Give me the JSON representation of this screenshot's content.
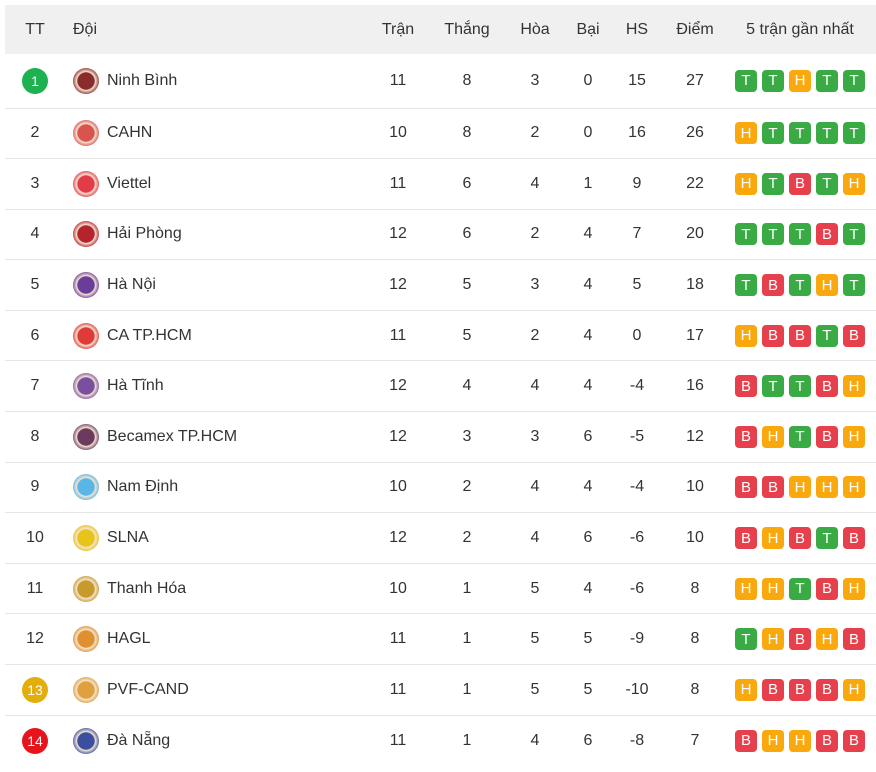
{
  "headers": {
    "rank": "TT",
    "team": "Đội",
    "played": "Trận",
    "won": "Thắng",
    "drawn": "Hòa",
    "lost": "Bại",
    "gd": "HS",
    "points": "Điểm",
    "form": "5 trận gần nhất"
  },
  "colors": {
    "win": "#3aaa45",
    "draw": "#f9a80e",
    "loss": "#e5404b",
    "rank_top": "#1db14f",
    "rank_playoff": "#e3ad0b",
    "rank_relegation": "#e8141c"
  },
  "rows": [
    {
      "rank": "1",
      "team": "Ninh Bình",
      "played": "11",
      "won": "8",
      "drawn": "3",
      "lost": "0",
      "gd": "15",
      "points": "27",
      "form": [
        "T",
        "T",
        "H",
        "T",
        "T"
      ],
      "badge": "#1db14f",
      "logo": "#8b2c2c"
    },
    {
      "rank": "2",
      "team": "CAHN",
      "played": "10",
      "won": "8",
      "drawn": "2",
      "lost": "0",
      "gd": "16",
      "points": "26",
      "form": [
        "H",
        "T",
        "T",
        "T",
        "T"
      ],
      "logo": "#d9534f"
    },
    {
      "rank": "3",
      "team": "Viettel",
      "played": "11",
      "won": "6",
      "drawn": "4",
      "lost": "1",
      "gd": "9",
      "points": "22",
      "form": [
        "H",
        "T",
        "B",
        "T",
        "H"
      ],
      "logo": "#e23b4a"
    },
    {
      "rank": "4",
      "team": "Hải Phòng",
      "played": "12",
      "won": "6",
      "drawn": "2",
      "lost": "4",
      "gd": "7",
      "points": "20",
      "form": [
        "T",
        "T",
        "T",
        "B",
        "T"
      ],
      "logo": "#b5242c"
    },
    {
      "rank": "5",
      "team": "Hà Nội",
      "played": "12",
      "won": "5",
      "drawn": "3",
      "lost": "4",
      "gd": "5",
      "points": "18",
      "form": [
        "T",
        "B",
        "T",
        "H",
        "T"
      ],
      "logo": "#6a3d9a"
    },
    {
      "rank": "6",
      "team": "CA TP.HCM",
      "played": "11",
      "won": "5",
      "drawn": "2",
      "lost": "4",
      "gd": "0",
      "points": "17",
      "form": [
        "H",
        "B",
        "B",
        "T",
        "B"
      ],
      "logo": "#e03a3a"
    },
    {
      "rank": "7",
      "team": "Hà Tĩnh",
      "played": "12",
      "won": "4",
      "drawn": "4",
      "lost": "4",
      "gd": "-4",
      "points": "16",
      "form": [
        "B",
        "T",
        "T",
        "B",
        "H"
      ],
      "logo": "#7a4fa0"
    },
    {
      "rank": "8",
      "team": "Becamex TP.HCM",
      "played": "12",
      "won": "3",
      "drawn": "3",
      "lost": "6",
      "gd": "-5",
      "points": "12",
      "form": [
        "B",
        "H",
        "T",
        "B",
        "H"
      ],
      "logo": "#6b3a5e"
    },
    {
      "rank": "9",
      "team": "Nam Định",
      "played": "10",
      "won": "2",
      "drawn": "4",
      "lost": "4",
      "gd": "-4",
      "points": "10",
      "form": [
        "B",
        "B",
        "H",
        "H",
        "H"
      ],
      "logo": "#5ab6e6"
    },
    {
      "rank": "10",
      "team": "SLNA",
      "played": "12",
      "won": "2",
      "drawn": "4",
      "lost": "6",
      "gd": "-6",
      "points": "10",
      "form": [
        "B",
        "H",
        "B",
        "T",
        "B"
      ],
      "logo": "#e8c31a"
    },
    {
      "rank": "11",
      "team": "Thanh Hóa",
      "played": "10",
      "won": "1",
      "drawn": "5",
      "lost": "4",
      "gd": "-6",
      "points": "8",
      "form": [
        "H",
        "H",
        "T",
        "B",
        "H"
      ],
      "logo": "#c89a2b"
    },
    {
      "rank": "12",
      "team": "HAGL",
      "played": "11",
      "won": "1",
      "drawn": "5",
      "lost": "5",
      "gd": "-9",
      "points": "8",
      "form": [
        "T",
        "H",
        "B",
        "H",
        "B"
      ],
      "logo": "#e09030"
    },
    {
      "rank": "13",
      "team": "PVF-CAND",
      "played": "11",
      "won": "1",
      "drawn": "5",
      "lost": "5",
      "gd": "-10",
      "points": "8",
      "form": [
        "H",
        "B",
        "B",
        "B",
        "H"
      ],
      "badge": "#e3ad0b",
      "logo": "#e0a040"
    },
    {
      "rank": "14",
      "team": "Đà Nẵng",
      "played": "11",
      "won": "1",
      "drawn": "4",
      "lost": "6",
      "gd": "-8",
      "points": "7",
      "form": [
        "B",
        "H",
        "H",
        "B",
        "B"
      ],
      "badge": "#e8141c",
      "logo": "#3b4ea0"
    }
  ]
}
